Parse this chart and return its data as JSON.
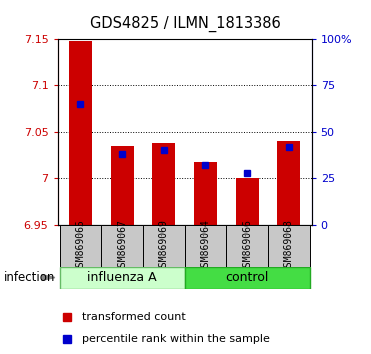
{
  "title": "GDS4825 / ILMN_1813386",
  "samples": [
    "GSM869065",
    "GSM869067",
    "GSM869069",
    "GSM869064",
    "GSM869066",
    "GSM869068"
  ],
  "transformed_counts": [
    7.148,
    7.035,
    7.038,
    7.018,
    7.0,
    7.04
  ],
  "percentile_ranks": [
    65,
    38,
    40,
    32,
    28,
    42
  ],
  "bar_color": "#cc0000",
  "dot_color": "#0000cc",
  "ymin": 6.95,
  "ymax": 7.15,
  "yticks": [
    6.95,
    7.0,
    7.05,
    7.1,
    7.15
  ],
  "ytick_labels": [
    "6.95",
    "7",
    "7.05",
    "7.1",
    "7.15"
  ],
  "right_yticks": [
    0,
    25,
    50,
    75,
    100
  ],
  "right_ytick_labels": [
    "0",
    "25",
    "50",
    "75",
    "100%"
  ],
  "left_axis_color": "#cc0000",
  "right_axis_color": "#0000cc",
  "bar_width": 0.55,
  "group_info": [
    {
      "label": "influenza A",
      "start": 0,
      "end": 2,
      "facecolor": "#ccffcc",
      "edgecolor": "#66bb66"
    },
    {
      "label": "control",
      "start": 3,
      "end": 5,
      "facecolor": "#44dd44",
      "edgecolor": "#22aa22"
    }
  ],
  "legend_labels": [
    "transformed count",
    "percentile rank within the sample"
  ],
  "plot_bg": "#ffffff"
}
